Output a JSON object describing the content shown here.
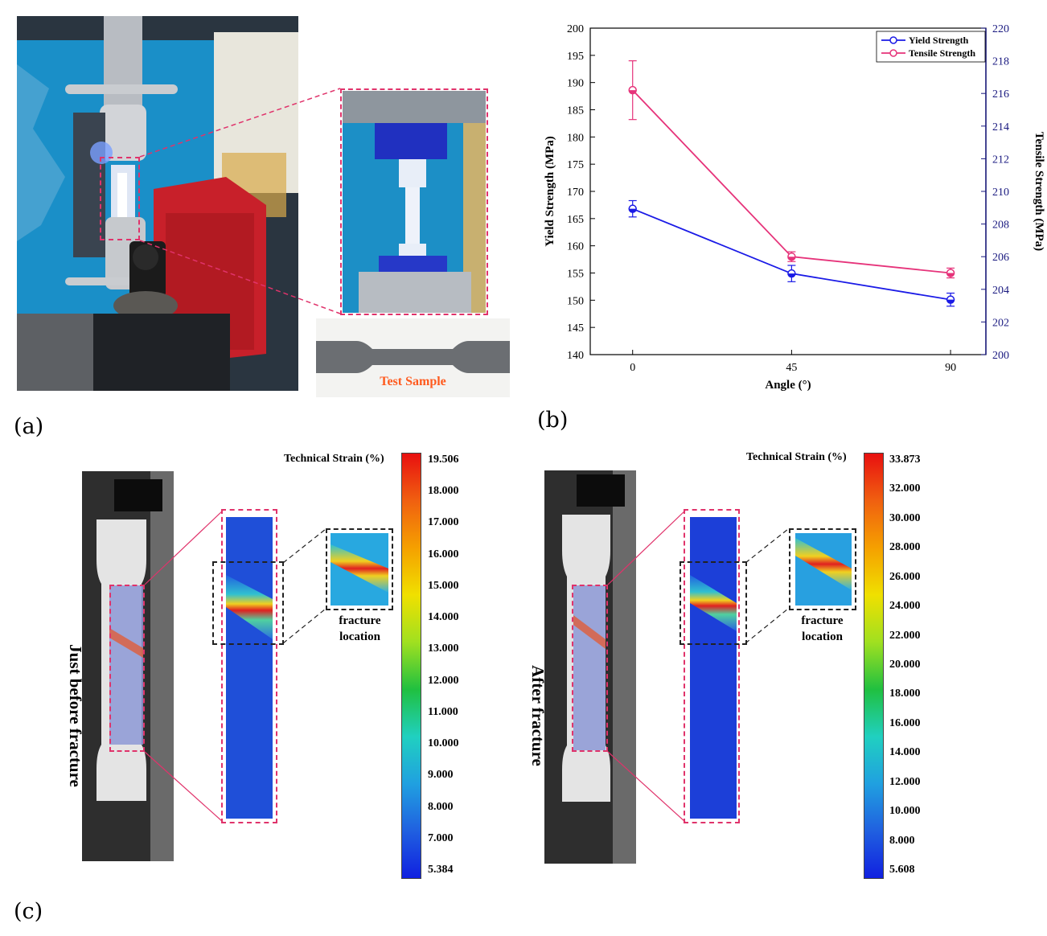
{
  "panels": {
    "a": {
      "label": "(a)",
      "sample_label": "Test Sample"
    },
    "b": {
      "label": "(b)"
    },
    "c": {
      "label": "(c)"
    }
  },
  "chart_data": {
    "type": "line",
    "x": [
      0,
      45,
      90
    ],
    "xticks": [
      "0",
      "45",
      "90"
    ],
    "xlabel": "Angle (°)",
    "ylabel_left": "Yield Strength (MPa)",
    "ylabel_right": "Tensile Strength (MPa)",
    "ylim_left": [
      140,
      200
    ],
    "ylim_right": [
      200,
      220
    ],
    "yticks_left": [
      "140",
      "145",
      "150",
      "155",
      "160",
      "165",
      "170",
      "175",
      "180",
      "185",
      "190",
      "195",
      "200"
    ],
    "yticks_right": [
      "200",
      "202",
      "204",
      "206",
      "208",
      "210",
      "212",
      "214",
      "216",
      "218",
      "220"
    ],
    "series": [
      {
        "name": "Yield Strength",
        "axis": "left",
        "color": "#1a1ae6",
        "values": [
          166.8,
          154.9,
          150.1
        ],
        "errors": [
          1.5,
          1.5,
          1.2
        ]
      },
      {
        "name": "Tensile Strength",
        "axis": "right",
        "color": "#e6337a",
        "values": [
          216.2,
          206.0,
          205.0
        ],
        "errors": [
          1.8,
          0.3,
          0.3
        ]
      }
    ]
  },
  "strain_maps": [
    {
      "side_label": "Just before fracture",
      "colorbar_title": "Technical Strain (%)",
      "ticks": [
        "19.506",
        "18.000",
        "17.000",
        "16.000",
        "15.000",
        "14.000",
        "13.000",
        "12.000",
        "11.000",
        "10.000",
        "9.000",
        "8.000",
        "7.000",
        "5.384"
      ],
      "fracture_label_1": "fracture",
      "fracture_label_2": "location"
    },
    {
      "side_label": "After fracture",
      "colorbar_title": "Technical Strain (%)",
      "ticks": [
        "33.873",
        "32.000",
        "30.000",
        "28.000",
        "26.000",
        "24.000",
        "22.000",
        "20.000",
        "18.000",
        "16.000",
        "14.000",
        "12.000",
        "10.000",
        "8.000",
        "5.608"
      ],
      "fracture_label_1": "fracture",
      "fracture_label_2": "location"
    }
  ],
  "colors": {
    "dashed_red": "#e0336b",
    "sample_text": "#ff5a1e"
  }
}
